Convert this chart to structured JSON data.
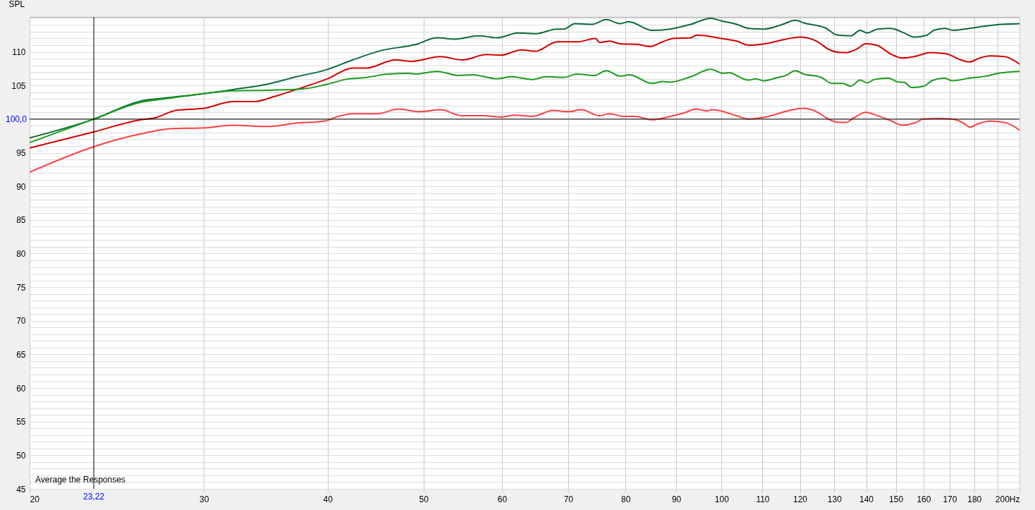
{
  "chart_data": {
    "type": "line",
    "ylabel": "SPL",
    "log": "x",
    "grid": true,
    "xlim": [
      20,
      200
    ],
    "ylim": [
      45,
      115.2
    ],
    "xticks": [
      20,
      30,
      40,
      50,
      60,
      70,
      80,
      90,
      100,
      110,
      120,
      130,
      140,
      150,
      160,
      170,
      180,
      {
        "value": 190,
        "label": null
      },
      {
        "value": 200,
        "label": "200Hz"
      }
    ],
    "yticks": [
      45,
      {
        "value": 46,
        "label": null
      },
      {
        "value": 47,
        "label": null
      },
      {
        "value": 48,
        "label": null
      },
      {
        "value": 49,
        "label": null
      },
      50,
      {
        "value": 51,
        "label": null
      },
      {
        "value": 52,
        "label": null
      },
      {
        "value": 53,
        "label": null
      },
      {
        "value": 54,
        "label": null
      },
      55,
      {
        "value": 56,
        "label": null
      },
      {
        "value": 57,
        "label": null
      },
      {
        "value": 58,
        "label": null
      },
      {
        "value": 59,
        "label": null
      },
      60,
      {
        "value": 61,
        "label": null
      },
      {
        "value": 62,
        "label": null
      },
      {
        "value": 63,
        "label": null
      },
      {
        "value": 64,
        "label": null
      },
      65,
      {
        "value": 66,
        "label": null
      },
      {
        "value": 67,
        "label": null
      },
      {
        "value": 68,
        "label": null
      },
      {
        "value": 69,
        "label": null
      },
      70,
      {
        "value": 71,
        "label": null
      },
      {
        "value": 72,
        "label": null
      },
      {
        "value": 73,
        "label": null
      },
      {
        "value": 74,
        "label": null
      },
      75,
      {
        "value": 76,
        "label": null
      },
      {
        "value": 77,
        "label": null
      },
      {
        "value": 78,
        "label": null
      },
      {
        "value": 79,
        "label": null
      },
      80,
      {
        "value": 81,
        "label": null
      },
      {
        "value": 82,
        "label": null
      },
      {
        "value": 83,
        "label": null
      },
      {
        "value": 84,
        "label": null
      },
      85,
      {
        "value": 86,
        "label": null
      },
      {
        "value": 87,
        "label": null
      },
      {
        "value": 88,
        "label": null
      },
      {
        "value": 89,
        "label": null
      },
      90,
      {
        "value": 91,
        "label": null
      },
      {
        "value": 92,
        "label": null
      },
      {
        "value": 93,
        "label": null
      },
      {
        "value": 94,
        "label": null
      },
      95,
      {
        "value": 96,
        "label": null
      },
      {
        "value": 97,
        "label": null
      },
      {
        "value": 98,
        "label": null
      },
      {
        "value": 99,
        "label": null
      },
      {
        "value": 100,
        "label": null
      },
      {
        "value": 101,
        "label": null
      },
      {
        "value": 102,
        "label": null
      },
      {
        "value": 103,
        "label": null
      },
      {
        "value": 104,
        "label": null
      },
      105,
      {
        "value": 106,
        "label": null
      },
      {
        "value": 107,
        "label": null
      },
      {
        "value": 108,
        "label": null
      },
      {
        "value": 109,
        "label": null
      },
      110,
      {
        "value": 111,
        "label": null
      },
      {
        "value": 112,
        "label": null
      },
      {
        "value": 113,
        "label": null
      },
      {
        "value": 114,
        "label": null
      },
      {
        "value": 115,
        "label": null
      }
    ],
    "ref_lines": [
      {
        "axis": "x",
        "value": 23.22,
        "label": "23,22",
        "color": "#000000"
      },
      {
        "axis": "y",
        "value": 100,
        "label": "100,0",
        "color": "#000000"
      }
    ],
    "annotations": [
      "Average the Responses"
    ],
    "series": [
      {
        "color": "#0b6b3a",
        "x": [
          20,
          23.22,
          25.9,
          27.7,
          30,
          32.1,
          34.8,
          37.2,
          40,
          42.4,
          45.3,
          49.1,
          51.6,
          53.8,
          56.9,
          59.3,
          62.3,
          64.9,
          68.2,
          69.3,
          71.1,
          74.0,
          76.5,
          79.0,
          80.6,
          85.1,
          88.7,
          93.1,
          97.5,
          100,
          103.6,
          106.5,
          110.3,
          115.3,
          118.7,
          121.1,
          127.2,
          131.0,
          135.1,
          138.1,
          140.3,
          143.8,
          148.1,
          153.0,
          156.6,
          161.3,
          163.9,
          168.1,
          171.4,
          178.0,
          188.5,
          200
        ],
        "values": [
          97.2,
          100.0,
          102.7,
          103.2,
          103.8,
          104.4,
          105.2,
          106.3,
          107.4,
          108.8,
          110.2,
          111.1,
          112.1,
          111.9,
          112.4,
          112.1,
          112.8,
          112.7,
          113.4,
          113.4,
          114.2,
          114.1,
          114.8,
          114.2,
          114.5,
          113.2,
          113.4,
          114.1,
          115.0,
          114.6,
          114.1,
          113.5,
          113.4,
          114.1,
          114.7,
          114.3,
          113.6,
          112.5,
          112.4,
          113.2,
          112.8,
          113.4,
          113.5,
          112.8,
          112.2,
          112.5,
          113.2,
          113.5,
          113.2,
          113.5,
          114.0,
          114.2
        ]
      },
      {
        "color": "#d40000",
        "x": [
          20,
          23.22,
          25.9,
          26.8,
          28.1,
          30,
          32.1,
          33.7,
          35.4,
          37.2,
          40,
          42.4,
          43.8,
          46.8,
          48.7,
          52.0,
          54.7,
          57.9,
          59.8,
          62.8,
          64.9,
          68.2,
          71.6,
          74.6,
          75.3,
          77.1,
          79.0,
          82.4,
          84.7,
          87.2,
          89.4,
          93.1,
          94.4,
          97.5,
          100,
          103.6,
          106.5,
          111.5,
          116.2,
          120.1,
          125.1,
          128.2,
          132.1,
          133.6,
          136.9,
          139.9,
          143.4,
          148.6,
          152.3,
          156.6,
          162.6,
          168.9,
          174.6,
          178.0,
          182.4,
          186.6,
          193.2,
          200
        ],
        "values": [
          95.7,
          98.1,
          99.9,
          100.2,
          101.3,
          101.6,
          102.6,
          102.6,
          103.4,
          104.4,
          106.0,
          107.6,
          107.6,
          108.8,
          108.6,
          109.3,
          108.8,
          109.6,
          109.5,
          110.3,
          110.1,
          111.5,
          111.5,
          112.0,
          111.4,
          111.6,
          111.2,
          111.1,
          110.8,
          111.5,
          112.0,
          112.1,
          112.5,
          112.3,
          112.0,
          111.6,
          111.0,
          111.3,
          111.9,
          112.2,
          111.5,
          110.4,
          109.9,
          109.9,
          110.4,
          111.2,
          111.0,
          109.6,
          109.1,
          109.3,
          109.9,
          109.7,
          108.8,
          108.5,
          109.1,
          109.4,
          109.3,
          108.2
        ]
      },
      {
        "color": "#1a9a1a",
        "x": [
          20,
          23.22,
          25.9,
          27.7,
          30,
          32.1,
          34.8,
          37.8,
          40,
          41.7,
          43.8,
          46.0,
          48.3,
          49.1,
          51.6,
          54.2,
          56.0,
          59.3,
          61.3,
          64.4,
          66.5,
          69.3,
          71.4,
          74.4,
          76.5,
          79.0,
          80.7,
          85.1,
          87.2,
          88.7,
          93.1,
          97.5,
          100.4,
          101.6,
          106.5,
          108.3,
          110.3,
          113.4,
          116.2,
          118.7,
          121.1,
          126.1,
          129.3,
          132.5,
          135.1,
          138.1,
          140.3,
          142.7,
          147.4,
          151.1,
          152.8,
          155.6,
          160.0,
          163.1,
          168.1,
          170.9,
          178.0,
          185.2,
          190.1,
          200
        ],
        "values": [
          96.5,
          100.0,
          102.5,
          103.1,
          103.8,
          104.2,
          104.3,
          104.5,
          105.2,
          105.9,
          106.2,
          106.7,
          106.8,
          106.7,
          107.1,
          106.5,
          106.6,
          106.0,
          106.3,
          105.9,
          106.3,
          106.2,
          106.7,
          106.5,
          107.2,
          106.4,
          106.6,
          105.3,
          105.6,
          105.5,
          106.3,
          107.4,
          106.8,
          106.9,
          105.8,
          106.0,
          105.7,
          106.1,
          106.5,
          107.2,
          106.7,
          106.2,
          105.3,
          105.3,
          104.9,
          105.8,
          105.4,
          105.9,
          106.1,
          105.5,
          105.5,
          104.7,
          104.9,
          105.7,
          106.1,
          105.7,
          106.1,
          106.4,
          106.8,
          107.1
        ]
      },
      {
        "color": "#ff4040",
        "x": [
          20,
          23.22,
          25.9,
          27.9,
          30,
          32.1,
          34.8,
          37.2,
          39.7,
          41.0,
          42.4,
          44.9,
          47.2,
          49.5,
          52.0,
          54.7,
          57.4,
          60.0,
          61.8,
          64.4,
          67.6,
          70.0,
          72.2,
          75.3,
          77.1,
          79.7,
          81.7,
          85.1,
          88.7,
          91.6,
          94.4,
          96.6,
          97.8,
          103.6,
          106.5,
          111.5,
          117.2,
          121.1,
          125.5,
          128.2,
          131.9,
          133.6,
          135.8,
          139.9,
          143.8,
          148.6,
          152.3,
          156.6,
          160.0,
          165.4,
          170.9,
          176.0,
          178.0,
          182.4,
          186.6,
          193.2,
          200
        ],
        "values": [
          92.1,
          95.9,
          97.8,
          98.6,
          98.7,
          99.1,
          98.9,
          99.4,
          99.7,
          100.4,
          100.8,
          100.8,
          101.5,
          101.1,
          101.4,
          100.5,
          100.5,
          100.3,
          100.6,
          100.4,
          101.3,
          101.1,
          101.4,
          100.5,
          100.8,
          100.4,
          100.4,
          99.9,
          100.4,
          100.9,
          101.5,
          101.2,
          101.4,
          100.5,
          100.0,
          100.4,
          101.3,
          101.6,
          100.9,
          100.0,
          99.5,
          99.5,
          100.1,
          101.0,
          100.5,
          99.7,
          99.1,
          99.4,
          100.0,
          100.1,
          100.0,
          99.3,
          98.8,
          99.4,
          99.7,
          99.5,
          98.4
        ]
      }
    ]
  }
}
